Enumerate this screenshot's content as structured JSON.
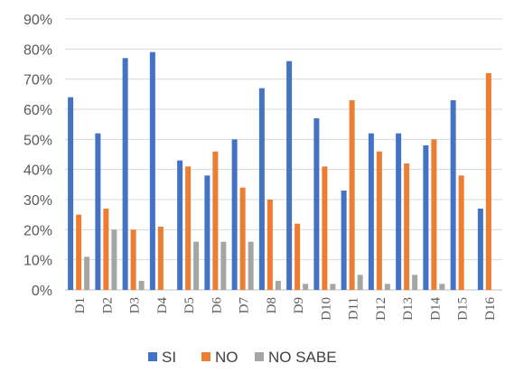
{
  "chart_data": {
    "type": "bar",
    "categories": [
      "D1",
      "D2",
      "D3",
      "D4",
      "D5",
      "D6",
      "D7",
      "D8",
      "D9",
      "D10",
      "D11",
      "D12",
      "D13",
      "D14",
      "D15",
      "D16"
    ],
    "series": [
      {
        "name": "SI",
        "color": "#4472C4",
        "values": [
          64,
          52,
          77,
          79,
          43,
          38,
          50,
          67,
          76,
          57,
          33,
          52,
          52,
          48,
          63,
          27
        ]
      },
      {
        "name": "NO",
        "color": "#ED7D31",
        "values": [
          25,
          27,
          20,
          21,
          41,
          46,
          34,
          30,
          22,
          41,
          63,
          46,
          42,
          50,
          38,
          72
        ]
      },
      {
        "name": "NO SABE",
        "color": "#A5A5A5",
        "values": [
          11,
          20,
          3,
          0,
          16,
          16,
          16,
          3,
          2,
          2,
          5,
          2,
          5,
          2,
          0,
          0
        ]
      }
    ],
    "yticks": [
      "0%",
      "10%",
      "20%",
      "30%",
      "40%",
      "50%",
      "60%",
      "70%",
      "80%",
      "90%"
    ],
    "ylim": [
      0,
      90
    ],
    "title": "",
    "xlabel": "",
    "ylabel": "",
    "grid": true,
    "legend_position": "bottom"
  }
}
